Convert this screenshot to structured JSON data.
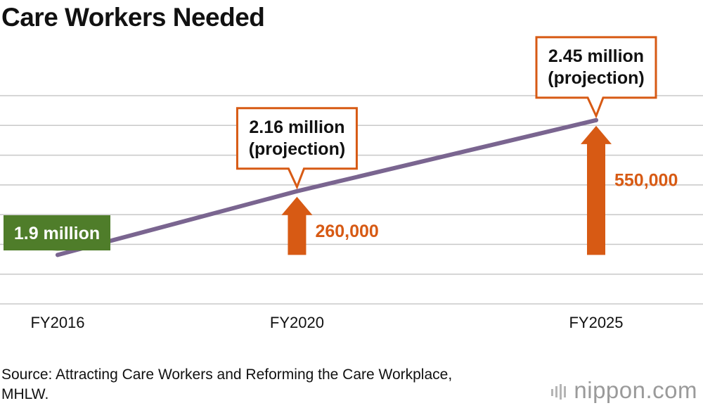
{
  "title": "Care Workers Needed",
  "source": "Source: Attracting Care Workers and Reforming the Care Workplace, MHLW.",
  "brand": "nippon.com",
  "colors": {
    "line": "#7a6590",
    "callout_orange": "#d75a14",
    "callout_green": "#4f7d2a",
    "grid": "#c8c8c8"
  },
  "chart_data": {
    "type": "line",
    "title": "Care Workers Needed",
    "xlabel": "",
    "ylabel": "",
    "categories": [
      "FY2016",
      "FY2020",
      "FY2025"
    ],
    "x": [
      2016,
      2020,
      2025
    ],
    "series": [
      {
        "name": "Care workers needed (million)",
        "values": [
          1.9,
          2.16,
          2.45
        ]
      }
    ],
    "ylim": [
      1.7,
      2.55
    ],
    "grid": true,
    "annotations": [
      {
        "x": 2016,
        "value": 1.9,
        "line1": "1.9 million",
        "line2": "",
        "style": "green"
      },
      {
        "x": 2020,
        "value": 2.16,
        "line1": "2.16 million",
        "line2": "(projection)",
        "style": "orange"
      },
      {
        "x": 2025,
        "value": 2.45,
        "line1": "2.45 million",
        "line2": "(projection)",
        "style": "orange"
      }
    ],
    "increases": [
      {
        "x": 2020,
        "from": 1.9,
        "to": 2.16,
        "label": "260,000"
      },
      {
        "x": 2025,
        "from": 1.9,
        "to": 2.45,
        "label": "550,000"
      }
    ]
  }
}
